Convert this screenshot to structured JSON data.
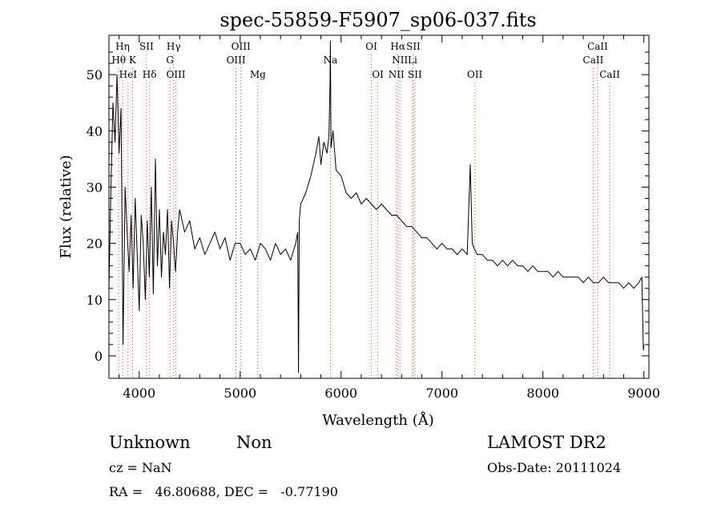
{
  "chart_data": {
    "type": "line",
    "title": "spec-55859-F5907_sp06-037.fits",
    "xlabel": "Wavelength (Å)",
    "ylabel": "Flux (relative)",
    "xlim": [
      3700,
      9050
    ],
    "ylim": [
      -4,
      57
    ],
    "x_ticks": [
      4000,
      5000,
      6000,
      7000,
      8000,
      9000
    ],
    "y_ticks": [
      0,
      10,
      20,
      30,
      40,
      50
    ],
    "grid": false,
    "line_color": "#000000",
    "marker_color": "#e05050",
    "line_markers": [
      {
        "label": "Hη",
        "x": 3835,
        "row": 0
      },
      {
        "label": "Hθ",
        "x": 3797,
        "row": 1
      },
      {
        "label": "K",
        "x": 3934,
        "row": 1
      },
      {
        "label": "HeI",
        "x": 3889,
        "row": 2
      },
      {
        "label": "SII",
        "x": 4072,
        "row": 0
      },
      {
        "label": "Hδ",
        "x": 4102,
        "row": 2
      },
      {
        "label": "Hγ",
        "x": 4341,
        "row": 0
      },
      {
        "label": "G",
        "x": 4305,
        "row": 1
      },
      {
        "label": "OIII",
        "x": 4363,
        "row": 2
      },
      {
        "label": "OIII",
        "x": 5007,
        "row": 0
      },
      {
        "label": "OIII",
        "x": 4959,
        "row": 1
      },
      {
        "label": "Mg",
        "x": 5175,
        "row": 2
      },
      {
        "label": "Na",
        "x": 5894,
        "row": 1
      },
      {
        "label": "OI",
        "x": 6300,
        "row": 0
      },
      {
        "label": "OI",
        "x": 6364,
        "row": 2
      },
      {
        "label": "Hα",
        "x": 6563,
        "row": 0
      },
      {
        "label": "SII",
        "x": 6716,
        "row": 0
      },
      {
        "label": "NII",
        "x": 6583,
        "row": 1
      },
      {
        "label": "Li",
        "x": 6708,
        "row": 1
      },
      {
        "label": "NII",
        "x": 6548,
        "row": 2
      },
      {
        "label": "SII",
        "x": 6731,
        "row": 2
      },
      {
        "label": "OII",
        "x": 7325,
        "row": 2
      },
      {
        "label": "CaII",
        "x": 8542,
        "row": 0
      },
      {
        "label": "CaII",
        "x": 8498,
        "row": 1
      },
      {
        "label": "CaII",
        "x": 8662,
        "row": 2
      }
    ],
    "series": [
      {
        "x": [
          3700,
          3720,
          3740,
          3760,
          3780,
          3800,
          3820,
          3840,
          3860,
          3880,
          3900,
          3920,
          3940,
          3960,
          3980,
          4000,
          4020,
          4040,
          4060,
          4080,
          4100,
          4120,
          4140,
          4160,
          4180,
          4200,
          4220,
          4240,
          4260,
          4280,
          4300,
          4320,
          4340,
          4360,
          4380,
          4400,
          4450,
          4500,
          4550,
          4600,
          4650,
          4700,
          4750,
          4800,
          4850,
          4900,
          4950,
          5000,
          5050,
          5100,
          5150,
          5200,
          5250,
          5300,
          5350,
          5400,
          5450,
          5500,
          5550,
          5570,
          5578,
          5586,
          5600,
          5650,
          5700,
          5750,
          5780,
          5800,
          5830,
          5860,
          5880,
          5890,
          5894,
          5900,
          5920,
          5950,
          6000,
          6050,
          6100,
          6150,
          6200,
          6250,
          6300,
          6350,
          6400,
          6450,
          6500,
          6550,
          6600,
          6650,
          6700,
          6750,
          6800,
          6850,
          6900,
          6950,
          7000,
          7050,
          7100,
          7150,
          7200,
          7250,
          7280,
          7300,
          7320,
          7350,
          7400,
          7450,
          7500,
          7550,
          7600,
          7650,
          7700,
          7750,
          7800,
          7850,
          7900,
          7950,
          8000,
          8050,
          8100,
          8150,
          8200,
          8250,
          8300,
          8350,
          8400,
          8450,
          8500,
          8550,
          8600,
          8650,
          8700,
          8750,
          8800,
          8850,
          8900,
          8950,
          8980,
          8995,
          9000
        ],
        "y": [
          12,
          30,
          45,
          38,
          50,
          36,
          44,
          2,
          30,
          22,
          15,
          25,
          12,
          28,
          18,
          8,
          25,
          20,
          10,
          24,
          14,
          30,
          11,
          35,
          16,
          26,
          14,
          22,
          18,
          26,
          12,
          24,
          20,
          15,
          22,
          26,
          22,
          24,
          19,
          21,
          18,
          20,
          22,
          19,
          21,
          17,
          20,
          20,
          18,
          19,
          17,
          20,
          19,
          17,
          20,
          18,
          19,
          17,
          20,
          22,
          -3,
          24,
          27,
          29,
          32,
          36,
          39,
          34,
          38,
          36,
          39,
          48,
          56,
          37,
          40,
          33,
          32,
          29,
          28,
          29,
          27,
          28,
          27,
          26,
          27,
          26,
          25,
          25,
          24,
          23,
          23,
          22,
          21,
          21,
          20,
          19,
          20,
          19,
          19,
          18,
          19,
          18,
          34,
          20,
          19,
          18,
          18,
          17,
          17,
          16,
          17,
          16,
          17,
          16,
          16,
          15,
          16,
          15,
          15,
          15,
          14,
          15,
          14,
          14,
          14,
          14,
          13,
          14,
          13,
          13,
          14,
          13,
          13,
          13,
          12,
          13,
          12,
          13,
          14,
          1,
          2
        ]
      }
    ]
  },
  "footer": {
    "object_class": "Unknown",
    "subclass": "Non",
    "survey": "LAMOST DR2",
    "cz": "cz = NaN",
    "obs_date": "Obs-Date: 20111024",
    "coords": "RA =   46.80688, DEC =   -0.77190"
  }
}
